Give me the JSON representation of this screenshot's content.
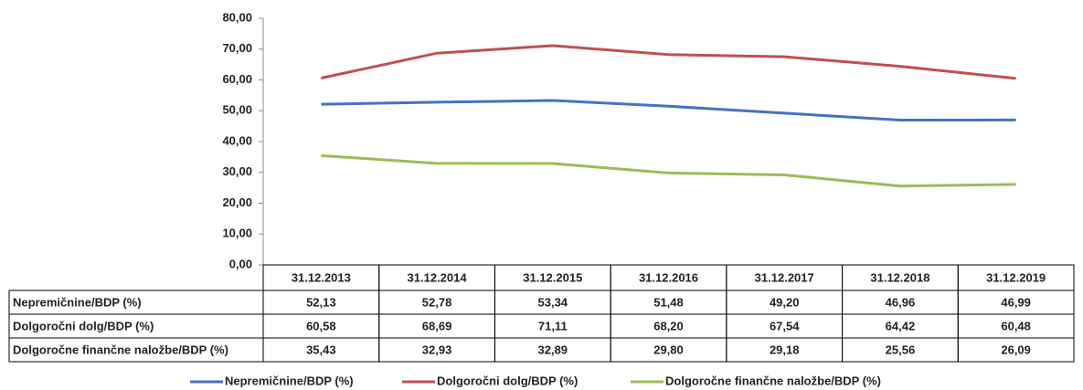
{
  "chart_data": {
    "type": "line",
    "categories": [
      "31.12.2013",
      "31.12.2014",
      "31.12.2015",
      "31.12.2016",
      "31.12.2017",
      "31.12.2018",
      "31.12.2019"
    ],
    "series": [
      {
        "name": "Nepremičnine/BDP (%)",
        "color": "#4472c4",
        "values": [
          52.13,
          52.78,
          53.34,
          51.48,
          49.2,
          46.96,
          46.99
        ],
        "value_labels": [
          "52,13",
          "52,78",
          "53,34",
          "51,48",
          "49,20",
          "46,96",
          "46,99"
        ]
      },
      {
        "name": "Dolgoročni dolg/BDP (%)",
        "color": "#c0504d",
        "values": [
          60.58,
          68.69,
          71.11,
          68.2,
          67.54,
          64.42,
          60.48
        ],
        "value_labels": [
          "60,58",
          "68,69",
          "71,11",
          "68,20",
          "67,54",
          "64,42",
          "60,48"
        ]
      },
      {
        "name": "Dolgoročne finančne naložbe/BDP (%)",
        "color": "#9bbb59",
        "values": [
          35.43,
          32.93,
          32.89,
          29.8,
          29.18,
          25.56,
          26.09
        ],
        "value_labels": [
          "35,43",
          "32,93",
          "32,89",
          "29,80",
          "29,18",
          "25,56",
          "26,09"
        ]
      }
    ],
    "ylim": [
      0,
      80
    ],
    "yticks": [
      {
        "value": 0,
        "label": "0,00"
      },
      {
        "value": 10,
        "label": "10,00"
      },
      {
        "value": 20,
        "label": "20,00"
      },
      {
        "value": 30,
        "label": "30,00"
      },
      {
        "value": 40,
        "label": "40,00"
      },
      {
        "value": 50,
        "label": "50,00"
      },
      {
        "value": 60,
        "label": "60,00"
      },
      {
        "value": 70,
        "label": "70,00"
      },
      {
        "value": 80,
        "label": "80,00"
      }
    ],
    "grid": false,
    "legend": "bottom"
  }
}
